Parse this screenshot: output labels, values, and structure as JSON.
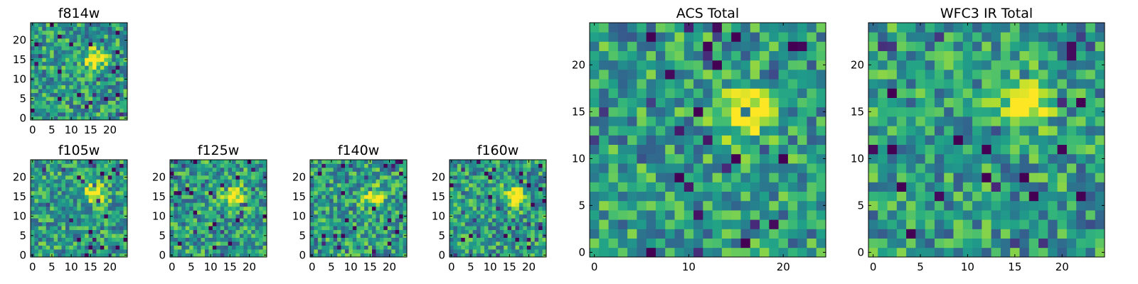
{
  "chart_data": [
    {
      "type": "heatmap",
      "title": "f814w",
      "xlabel": "",
      "ylabel": "",
      "grid": false,
      "xlim": [
        -0.5,
        24.5
      ],
      "ylim": [
        -0.5,
        24.5
      ],
      "xticks": [
        0,
        5,
        10,
        15,
        20
      ],
      "yticks": [
        0,
        5,
        10,
        15,
        20
      ],
      "peak": {
        "x": 16,
        "y": 15
      },
      "colormap": "viridis"
    },
    {
      "type": "heatmap",
      "title": "f105w",
      "xlabel": "",
      "ylabel": "",
      "grid": false,
      "xlim": [
        -0.5,
        24.5
      ],
      "ylim": [
        -0.5,
        24.5
      ],
      "xticks": [
        0,
        5,
        10,
        15,
        20
      ],
      "yticks": [
        0,
        5,
        10,
        15,
        20
      ],
      "peak": {
        "x": 16,
        "y": 16
      },
      "colormap": "viridis"
    },
    {
      "type": "heatmap",
      "title": "f125w",
      "xlabel": "",
      "ylabel": "",
      "grid": false,
      "xlim": [
        -0.5,
        24.5
      ],
      "ylim": [
        -0.5,
        24.5
      ],
      "xticks": [
        0,
        5,
        10,
        15,
        20
      ],
      "yticks": [
        0,
        5,
        10,
        15,
        20
      ],
      "peak": {
        "x": 16,
        "y": 15
      },
      "colormap": "viridis"
    },
    {
      "type": "heatmap",
      "title": "f140w",
      "xlabel": "",
      "ylabel": "",
      "grid": false,
      "xlim": [
        -0.5,
        24.5
      ],
      "ylim": [
        -0.5,
        24.5
      ],
      "xticks": [
        0,
        5,
        10,
        15,
        20
      ],
      "yticks": [
        0,
        5,
        10,
        15,
        20
      ],
      "peak": {
        "x": 16,
        "y": 15
      },
      "colormap": "viridis"
    },
    {
      "type": "heatmap",
      "title": "f160w",
      "xlabel": "",
      "ylabel": "",
      "grid": false,
      "xlim": [
        -0.5,
        24.5
      ],
      "ylim": [
        -0.5,
        24.5
      ],
      "xticks": [
        0,
        5,
        10,
        15,
        20
      ],
      "yticks": [
        0,
        5,
        10,
        15,
        20
      ],
      "peak": {
        "x": 16,
        "y": 15
      },
      "colormap": "viridis"
    },
    {
      "type": "heatmap",
      "title": "ACS Total",
      "xlabel": "",
      "ylabel": "",
      "grid": false,
      "xlim": [
        -0.5,
        24.5
      ],
      "ylim": [
        -0.5,
        24.5
      ],
      "xticks": [
        0,
        10,
        20
      ],
      "yticks": [
        0,
        5,
        10,
        15,
        20
      ],
      "peak": {
        "x": 16,
        "y": 15
      },
      "colormap": "viridis"
    },
    {
      "type": "heatmap",
      "title": "WFC3 IR Total",
      "xlabel": "",
      "ylabel": "",
      "grid": false,
      "xlim": [
        -0.5,
        24.5
      ],
      "ylim": [
        -0.5,
        24.5
      ],
      "xticks": [
        0,
        5,
        10,
        15,
        20
      ],
      "yticks": [
        0,
        5,
        10,
        15,
        20
      ],
      "peak": {
        "x": 16,
        "y": 16
      },
      "colormap": "viridis"
    }
  ],
  "colors": {
    "viridis_dark": "#440154",
    "viridis_blue": "#3b528b",
    "viridis_teal": "#21918c",
    "viridis_green": "#5ec962",
    "viridis_yellow": "#fde725"
  }
}
